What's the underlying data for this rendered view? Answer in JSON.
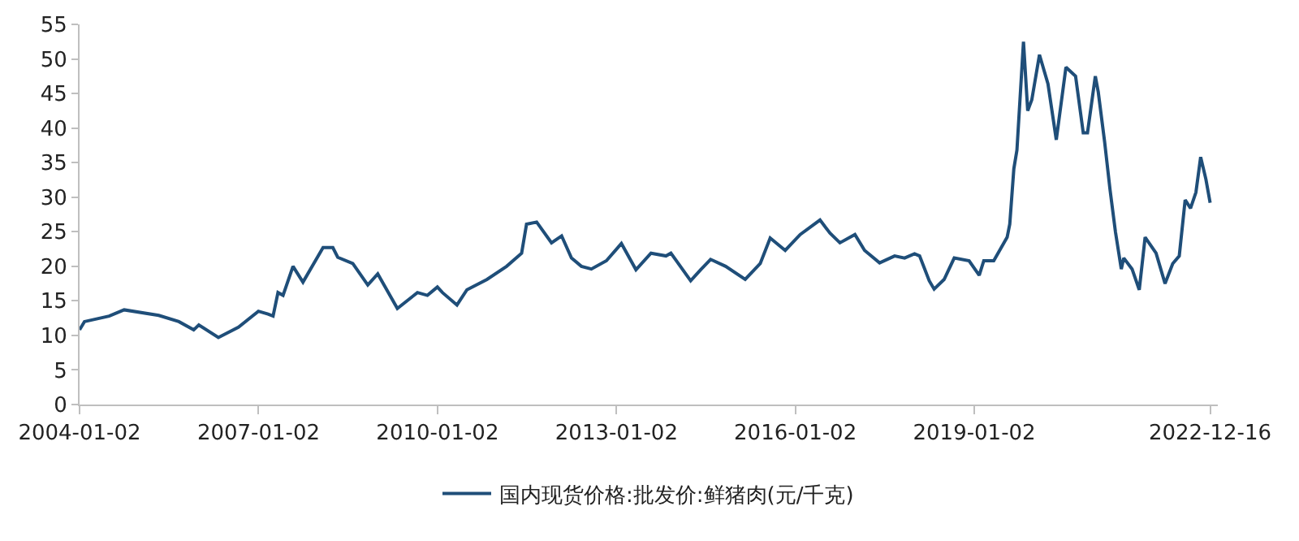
{
  "chart_data": {
    "type": "line",
    "x": [
      "2004-01-02",
      "2004-02",
      "2004-07",
      "2004-10",
      "2005-05",
      "2005-09",
      "2005-12",
      "2006-01",
      "2006-05",
      "2006-09",
      "2007-01",
      "2007-03",
      "2007-04",
      "2007-05",
      "2007-06",
      "2007-08",
      "2007-10",
      "2008-02",
      "2008-04",
      "2008-05",
      "2008-08",
      "2008-11",
      "2009-01",
      "2009-05",
      "2009-09",
      "2009-11",
      "2010-01",
      "2010-02",
      "2010-05",
      "2010-07",
      "2010-11",
      "2011-03",
      "2011-06",
      "2011-07",
      "2011-09",
      "2011-12",
      "2012-02",
      "2012-04",
      "2012-06",
      "2012-08",
      "2012-11",
      "2013-02",
      "2013-05",
      "2013-08",
      "2013-11",
      "2013-12",
      "2014-04",
      "2014-06",
      "2014-08",
      "2014-11",
      "2015-03",
      "2015-06",
      "2015-08",
      "2015-11",
      "2016-02",
      "2016-06",
      "2016-08",
      "2016-10",
      "2017-01",
      "2017-03",
      "2017-06",
      "2017-09",
      "2017-11",
      "2018-01",
      "2018-02",
      "2018-04",
      "2018-05",
      "2018-07",
      "2018-09",
      "2018-12",
      "2019-02",
      "2019-03",
      "2019-05",
      "2019-07-22",
      "2019-08-07",
      "2019-09-01",
      "2019-09-20",
      "2019-10-30",
      "2019-11-25",
      "2019-12-20",
      "2020-02-05",
      "2020-03-28",
      "2020-05-18",
      "2020-07-16",
      "2020-09-13",
      "2020-10-30",
      "2020-11-25",
      "2021-01-12",
      "2021-01-30",
      "2021-03-10",
      "2021-04-12",
      "2021-05-15",
      "2021-06-20",
      "2021-07-05",
      "2021-08-25",
      "2021-10-08",
      "2021-11-13",
      "2022-01-19",
      "2022-03-15",
      "2022-05-01",
      "2022-06-10",
      "2022-07-16",
      "2022-08-18",
      "2022-09-20",
      "2022-10-19",
      "2022-11-20",
      "2022-12-16"
    ],
    "series": [
      {
        "name": "国内现货价格:批发价:鲜猪肉(元/千克)",
        "color": "#1f4e79",
        "values": [
          10.8,
          12.0,
          12.8,
          13.7,
          12.9,
          12.0,
          10.8,
          11.5,
          9.7,
          11.2,
          13.5,
          13.1,
          12.8,
          16.2,
          15.8,
          20.0,
          17.7,
          22.7,
          22.7,
          21.3,
          20.4,
          17.3,
          18.9,
          13.9,
          16.2,
          15.8,
          17.0,
          16.2,
          14.4,
          16.6,
          18.1,
          20.0,
          21.9,
          26.1,
          26.4,
          23.4,
          24.4,
          21.2,
          20.0,
          19.6,
          20.8,
          23.3,
          19.5,
          21.9,
          21.5,
          21.9,
          17.9,
          19.5,
          21.0,
          20.0,
          18.1,
          20.4,
          24.1,
          22.3,
          24.6,
          26.7,
          24.8,
          23.4,
          24.6,
          22.3,
          20.5,
          21.5,
          21.2,
          21.8,
          21.5,
          17.9,
          16.7,
          18.1,
          21.2,
          20.8,
          18.7,
          20.8,
          20.8,
          24.2,
          26.1,
          34.1,
          36.8,
          52.5,
          42.5,
          44.1,
          50.6,
          46.4,
          38.3,
          48.8,
          47.5,
          39.3,
          39.3,
          47.5,
          45.2,
          38.0,
          31.1,
          25.0,
          19.6,
          21.2,
          19.6,
          16.6,
          24.2,
          21.9,
          17.5,
          20.4,
          21.5,
          29.6,
          28.4,
          30.7,
          35.8,
          32.6,
          29.2
        ]
      }
    ],
    "xlim": [
      "2004-01-02",
      "2023-02-01"
    ],
    "xticks": [
      "2004-01-02",
      "2007-01-02",
      "2010-01-02",
      "2013-01-02",
      "2016-01-02",
      "2019-01-02",
      "2022-12-16"
    ],
    "ylim": [
      0,
      55
    ],
    "yticks": [
      0,
      5,
      10,
      15,
      20,
      25,
      30,
      35,
      40,
      45,
      50,
      55
    ],
    "legend": "bottom"
  }
}
